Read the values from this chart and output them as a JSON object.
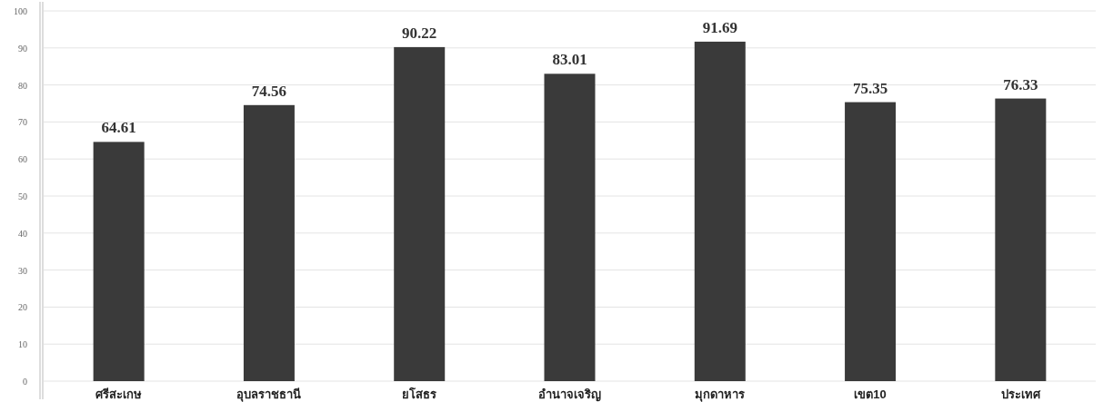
{
  "chart_data": {
    "type": "bar",
    "categories": [
      "ศรีสะเกษ",
      "อุบลราชธานี",
      "ยโสธร",
      "อำนาจเจริญ",
      "มุกดาหาร",
      "เขต10",
      "ประเทศ"
    ],
    "values": [
      64.61,
      74.56,
      90.22,
      83.01,
      91.69,
      75.35,
      76.33
    ],
    "color": "#3a3a3a",
    "ylim": [
      0,
      100
    ],
    "yticks": [
      0,
      10,
      20,
      30,
      40,
      50,
      60,
      70,
      80,
      90,
      100
    ],
    "grid": "y",
    "data_labels": true
  }
}
